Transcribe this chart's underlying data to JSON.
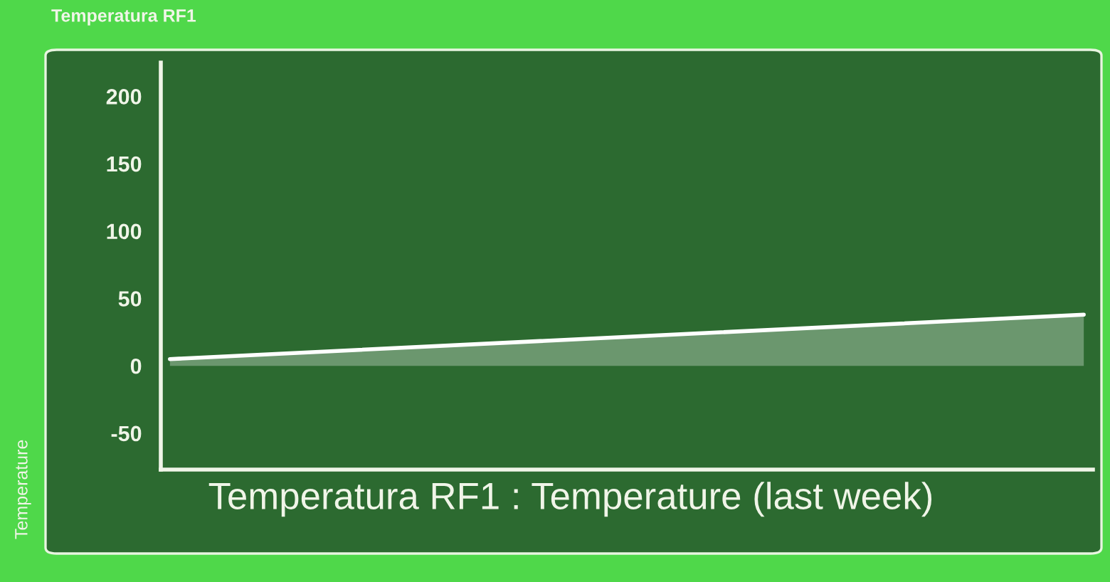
{
  "chart_data": {
    "type": "area",
    "title": "Temperatura RF1",
    "xlabel": "Temperatura RF1 : Temperature (last week)",
    "ylabel": "Temperature",
    "categories": [
      null,
      null
    ],
    "series": [
      {
        "color": "#ffffff",
        "values": [
          5,
          38
        ]
      }
    ],
    "ylim": [
      -77,
      225
    ],
    "yticks": [
      -50,
      0,
      50,
      100,
      150,
      200
    ],
    "grid": false,
    "tick_labels": "y",
    "line_style": "solid",
    "marker": "none"
  }
}
